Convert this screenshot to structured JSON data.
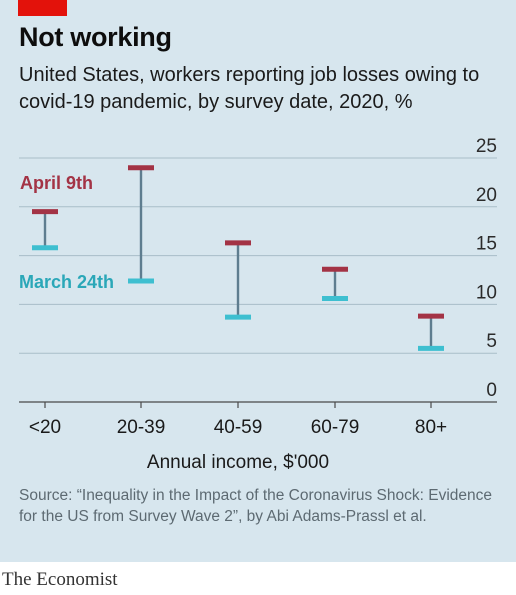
{
  "header": {
    "title": "Not working",
    "subtitle": "United States, workers reporting job losses owing to covid-19 pandemic, by survey date, 2020, %"
  },
  "footer": {
    "source": "Source: “Inequality in the Impact of the Coronavirus Shock: Evidence for the US from Survey Wave 2”, by Abi Adams-Prassl et al.",
    "brand": "The Economist"
  },
  "colors": {
    "background": "#d7e6ee",
    "brand_red": "#e3120b",
    "april": "#a33345",
    "march": "#3ebfd0",
    "range_line": "#5e7d8f",
    "grid": "#a9bdc8"
  },
  "chart_data": {
    "type": "range",
    "categories": [
      "<20",
      "20-39",
      "40-59",
      "60-79",
      "80+"
    ],
    "series": [
      {
        "name": "April 9th",
        "values": [
          19.5,
          24,
          16.3,
          13.6,
          8.8
        ]
      },
      {
        "name": "March 24th",
        "values": [
          15.8,
          12.4,
          8.7,
          10.6,
          5.5
        ]
      }
    ],
    "xlabel": "Annual income, $'000",
    "ylabel": "",
    "ylim": [
      0,
      25
    ],
    "yticks": [
      0,
      5,
      10,
      15,
      20,
      25
    ],
    "grid": true,
    "legend": "inline labels, left"
  }
}
